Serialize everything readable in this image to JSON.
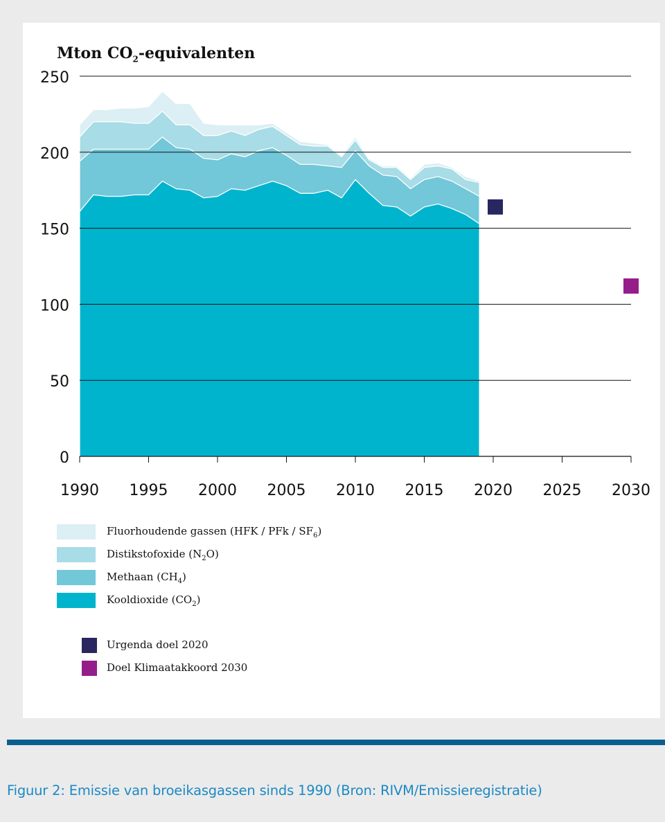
{
  "chart_data": {
    "type": "area",
    "ylabel_prefix": "Mton CO",
    "ylabel_sub": "2",
    "ylabel_suffix": "-equivalenten",
    "ylim": [
      0,
      250
    ],
    "xlim": [
      1990,
      2030
    ],
    "y_ticks": [
      0,
      50,
      100,
      150,
      200,
      250
    ],
    "x_ticks": [
      1990,
      1995,
      2000,
      2005,
      2010,
      2015,
      2020,
      2025,
      2030
    ],
    "grid": "horizontal",
    "years": [
      1990,
      1991,
      1992,
      1993,
      1994,
      1995,
      1996,
      1997,
      1998,
      1999,
      2000,
      2001,
      2002,
      2003,
      2004,
      2005,
      2006,
      2007,
      2008,
      2009,
      2010,
      2011,
      2012,
      2013,
      2014,
      2015,
      2016,
      2017,
      2018,
      2019
    ],
    "series": [
      {
        "name": "Kooldioxide (CO",
        "name_sub": "2",
        "name_suffix": ")",
        "color": "#00b4cd",
        "values": [
          161,
          172,
          171,
          171,
          172,
          172,
          181,
          176,
          175,
          170,
          171,
          176,
          175,
          178,
          181,
          178,
          173,
          173,
          175,
          170,
          182,
          173,
          165,
          164,
          158,
          164,
          166,
          163,
          159,
          153
        ]
      },
      {
        "name": "Methaan (CH",
        "name_sub": "4",
        "name_suffix": ")",
        "color": "#72c7d9",
        "values": [
          33,
          30,
          31,
          31,
          30,
          30,
          29,
          27,
          27,
          26,
          24,
          23,
          22,
          23,
          22,
          20,
          19,
          19,
          16,
          20,
          19,
          18,
          20,
          20,
          18,
          18,
          18,
          18,
          17,
          18
        ]
      },
      {
        "name": "Distikstofoxide (N",
        "name_sub": "2",
        "name_suffix": "O)",
        "color": "#a8dce6",
        "values": [
          16,
          18,
          18,
          18,
          17,
          17,
          17,
          15,
          16,
          15,
          16,
          15,
          14,
          14,
          14,
          13,
          13,
          12,
          13,
          7,
          7,
          4,
          5,
          6,
          6,
          8,
          7,
          8,
          6,
          9
        ]
      },
      {
        "name": "Fluorhoudende gassen (HFK / PFk / SF",
        "name_sub": "6",
        "name_suffix": ")",
        "color": "#dbeff4",
        "values": [
          8,
          8,
          8,
          9,
          10,
          11,
          13,
          14,
          14,
          8,
          7,
          4,
          7,
          3,
          2,
          2,
          2,
          2,
          1,
          1,
          2,
          1,
          1,
          1,
          1,
          2,
          2,
          1,
          2,
          1
        ]
      }
    ],
    "targets": [
      {
        "name": "Urgenda doel 2020",
        "year": 2020,
        "value": 164,
        "color": "#2a2660"
      },
      {
        "name": "Doel Klimaatakkoord 2030",
        "year": 2030,
        "value": 112,
        "color": "#951d8a"
      }
    ]
  },
  "caption": "Figuur 2: Emissie van broeikasgassen sinds 1990 (Bron: RIVM/Emissieregistratie)"
}
